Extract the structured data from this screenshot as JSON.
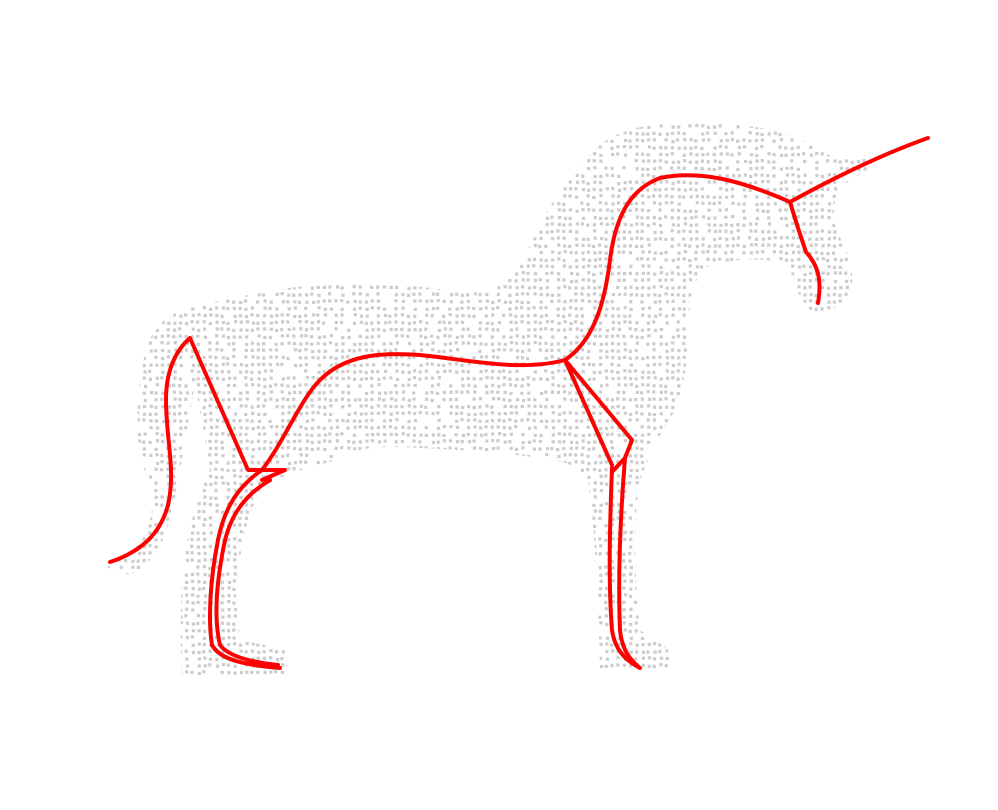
{
  "figure": {
    "subject": "unicorn",
    "point_cloud_color": "#cccccc",
    "skeleton_color": "#ff0000",
    "background_color": "#ffffff"
  },
  "skeleton": {
    "parts": [
      "tail",
      "back-and-neck",
      "horn",
      "head",
      "front-leg-upper",
      "front-leg-lower",
      "hind-leg-upper",
      "hind-leg-lower"
    ]
  }
}
